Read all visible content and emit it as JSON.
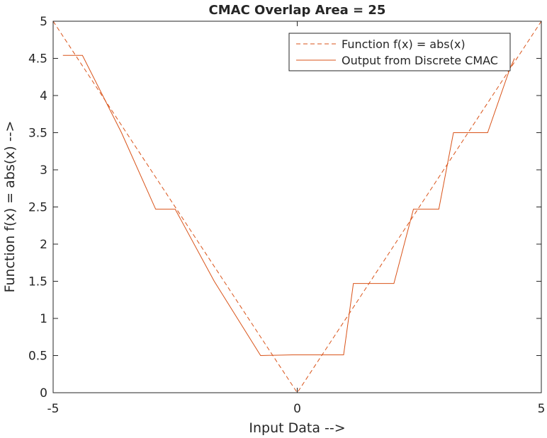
{
  "chart_data": {
    "type": "line",
    "title": "CMAC Overlap Area = 25",
    "xlabel": "Input Data -->",
    "ylabel": "Function f(x) = abs(x) -->",
    "xlim": [
      -5,
      5
    ],
    "ylim": [
      0,
      5
    ],
    "xticks": [
      -5,
      0,
      5
    ],
    "xtick_labels": [
      "-5",
      "0",
      "5"
    ],
    "yticks": [
      0,
      0.5,
      1,
      1.5,
      2,
      2.5,
      3,
      3.5,
      4,
      4.5,
      5
    ],
    "ytick_labels": [
      "0",
      "0.5",
      "1",
      "1.5",
      "2",
      "2.5",
      "3",
      "3.5",
      "4",
      "4.5",
      "5"
    ],
    "grid": false,
    "legend_position": "top-right",
    "series": [
      {
        "name": "Function f(x) = abs(x)",
        "style": "dashed",
        "color": "#D95319",
        "x": [
          -5,
          0,
          5
        ],
        "y": [
          5,
          0,
          5
        ]
      },
      {
        "name": "Output from Discrete CMAC",
        "style": "solid",
        "color": "#D95319",
        "x": [
          -4.8,
          -4.4,
          -3.6,
          -2.9,
          -2.5,
          -1.7,
          -0.75,
          -0.1,
          0.95,
          1.15,
          1.98,
          2.38,
          2.9,
          3.2,
          3.9,
          4.35,
          4.45
        ],
        "y": [
          4.54,
          4.54,
          3.5,
          2.47,
          2.47,
          1.5,
          0.5,
          0.51,
          0.51,
          1.47,
          1.47,
          2.47,
          2.47,
          3.5,
          3.5,
          4.35,
          4.5
        ]
      }
    ]
  }
}
